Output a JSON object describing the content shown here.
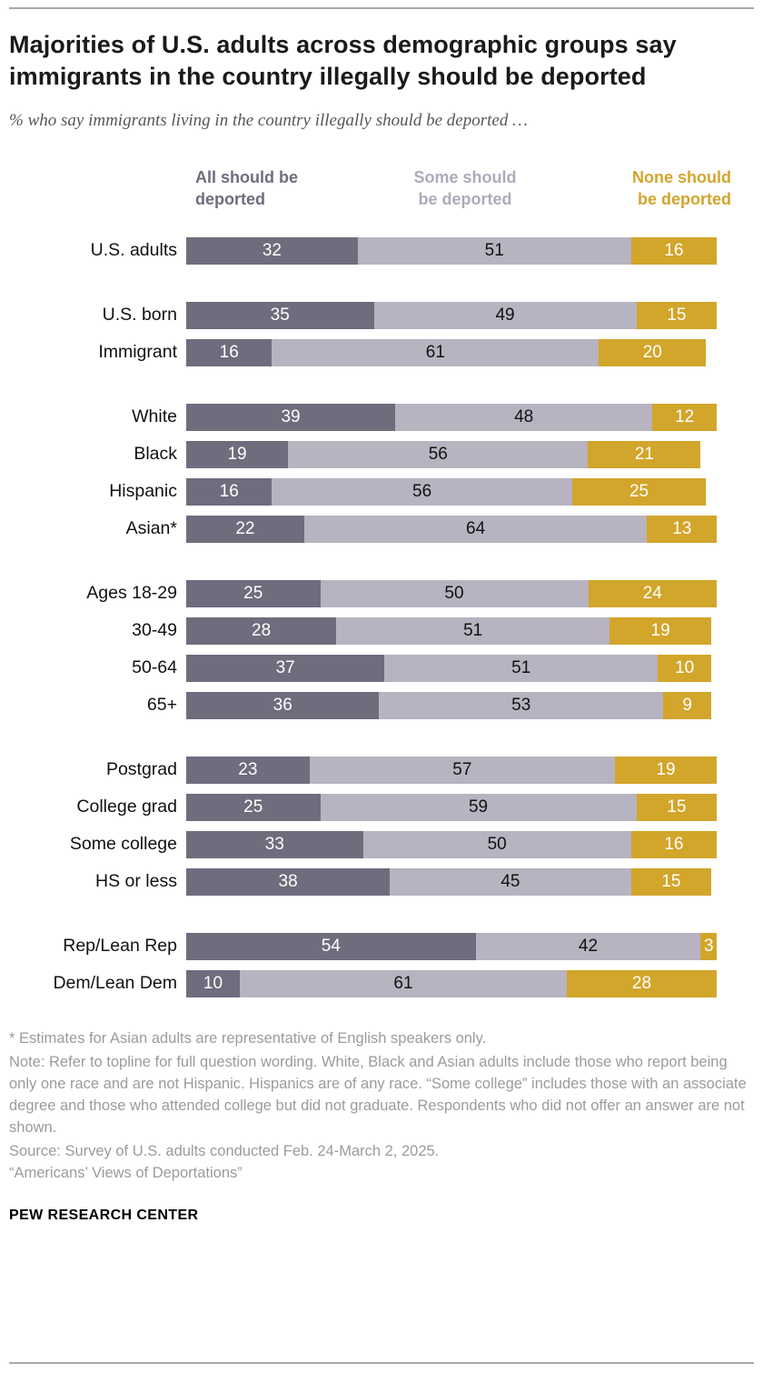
{
  "meta": {
    "title": "Majorities of U.S. adults across demographic groups say immigrants in the country illegally should be deported",
    "subtitle": "% who say immigrants living in the country illegally should be deported …"
  },
  "colors": {
    "all": "#6f6c7d",
    "some": "#b7b3c0",
    "some_label": "#aeaaba",
    "none": "#d2a52b"
  },
  "legend": [
    {
      "label": "All should be\ndeported"
    },
    {
      "label": "Some should\nbe deported"
    },
    {
      "label": "None should\nbe deported"
    }
  ],
  "chart_data": {
    "type": "bar",
    "orientation": "horizontal",
    "stacked": true,
    "xlim": [
      0,
      100
    ],
    "series_names": [
      "All should be deported",
      "Some should be deported",
      "None should be deported"
    ],
    "groups": [
      {
        "rows": [
          {
            "label": "U.S. adults",
            "values": [
              32,
              51,
              16
            ]
          }
        ]
      },
      {
        "rows": [
          {
            "label": "U.S. born",
            "values": [
              35,
              49,
              15
            ]
          },
          {
            "label": "Immigrant",
            "values": [
              16,
              61,
              20
            ]
          }
        ]
      },
      {
        "rows": [
          {
            "label": "White",
            "values": [
              39,
              48,
              12
            ]
          },
          {
            "label": "Black",
            "values": [
              19,
              56,
              21
            ]
          },
          {
            "label": "Hispanic",
            "values": [
              16,
              56,
              25
            ]
          },
          {
            "label": "Asian*",
            "values": [
              22,
              64,
              13
            ]
          }
        ]
      },
      {
        "rows": [
          {
            "label": "Ages 18-29",
            "values": [
              25,
              50,
              24
            ]
          },
          {
            "label": "30-49",
            "values": [
              28,
              51,
              19
            ]
          },
          {
            "label": "50-64",
            "values": [
              37,
              51,
              10
            ]
          },
          {
            "label": "65+",
            "values": [
              36,
              53,
              9
            ]
          }
        ]
      },
      {
        "rows": [
          {
            "label": "Postgrad",
            "values": [
              23,
              57,
              19
            ]
          },
          {
            "label": "College grad",
            "values": [
              25,
              59,
              15
            ]
          },
          {
            "label": "Some college",
            "values": [
              33,
              50,
              16
            ]
          },
          {
            "label": "HS or less",
            "values": [
              38,
              45,
              15
            ]
          }
        ]
      },
      {
        "rows": [
          {
            "label": "Rep/Lean Rep",
            "values": [
              54,
              42,
              3
            ]
          },
          {
            "label": "Dem/Lean Dem",
            "values": [
              10,
              61,
              28
            ]
          }
        ]
      }
    ]
  },
  "notes": {
    "asterisk": "* Estimates for Asian adults are representative of English speakers only.",
    "note": "Note: Refer to topline for full question wording. White, Black and Asian adults include those who report being only one race and are not Hispanic. Hispanics are of any race. “Some college” includes those with an associate degree and those who attended college but did not graduate. Respondents who did not offer an answer are not shown.",
    "source": "Source: Survey of U.S. adults conducted Feb. 24-March 2, 2025.",
    "report": "“Americans’ Views of Deportations”"
  },
  "footer": {
    "label": "PEW RESEARCH CENTER"
  }
}
